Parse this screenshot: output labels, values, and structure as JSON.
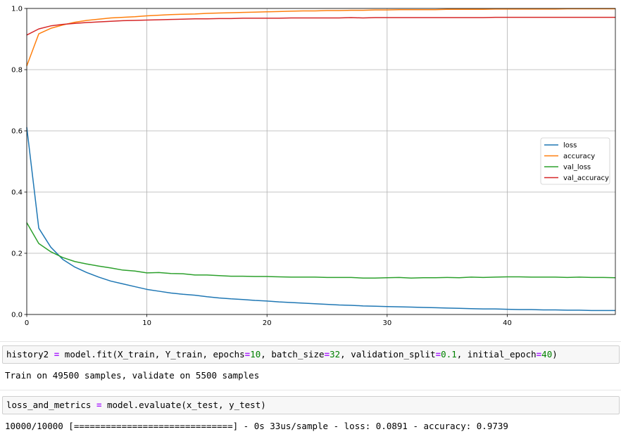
{
  "chart_data": {
    "type": "line",
    "xticks": [
      "0",
      "10",
      "20",
      "30",
      "40"
    ],
    "yticks": [
      "0.0",
      "0.2",
      "0.4",
      "0.6",
      "0.8",
      "1.0"
    ],
    "xlim": [
      0,
      49
    ],
    "ylim": [
      0,
      1
    ],
    "grid": true,
    "legend_position": "center-right",
    "series": [
      {
        "name": "loss",
        "color": "#1f77b4",
        "values": [
          0.612,
          0.282,
          0.22,
          0.18,
          0.155,
          0.137,
          0.122,
          0.109,
          0.1,
          0.091,
          0.082,
          0.076,
          0.07,
          0.066,
          0.063,
          0.058,
          0.054,
          0.051,
          0.049,
          0.046,
          0.044,
          0.041,
          0.039,
          0.037,
          0.035,
          0.033,
          0.031,
          0.03,
          0.028,
          0.027,
          0.026,
          0.025,
          0.024,
          0.023,
          0.022,
          0.021,
          0.02,
          0.019,
          0.018,
          0.018,
          0.017,
          0.016,
          0.016,
          0.015,
          0.015,
          0.014,
          0.014,
          0.013,
          0.013,
          0.013
        ]
      },
      {
        "name": "accuracy",
        "color": "#ff7f0e",
        "values": [
          0.812,
          0.917,
          0.935,
          0.946,
          0.955,
          0.961,
          0.965,
          0.969,
          0.971,
          0.973,
          0.976,
          0.978,
          0.98,
          0.981,
          0.982,
          0.984,
          0.985,
          0.986,
          0.987,
          0.988,
          0.989,
          0.99,
          0.991,
          0.992,
          0.992,
          0.993,
          0.993,
          0.994,
          0.994,
          0.995,
          0.995,
          0.996,
          0.996,
          0.996,
          0.996,
          0.997,
          0.997,
          0.997,
          0.997,
          0.998,
          0.998,
          0.998,
          0.998,
          0.998,
          0.998,
          0.999,
          0.999,
          0.999,
          0.999,
          0.999
        ]
      },
      {
        "name": "val_loss",
        "color": "#2ca02c",
        "values": [
          0.3,
          0.232,
          0.205,
          0.186,
          0.173,
          0.165,
          0.158,
          0.152,
          0.145,
          0.142,
          0.136,
          0.137,
          0.134,
          0.133,
          0.129,
          0.129,
          0.127,
          0.125,
          0.125,
          0.124,
          0.124,
          0.123,
          0.122,
          0.122,
          0.122,
          0.121,
          0.121,
          0.121,
          0.119,
          0.119,
          0.12,
          0.121,
          0.119,
          0.12,
          0.12,
          0.121,
          0.12,
          0.122,
          0.121,
          0.122,
          0.123,
          0.123,
          0.122,
          0.122,
          0.122,
          0.121,
          0.122,
          0.121,
          0.121,
          0.12
        ]
      },
      {
        "name": "val_accuracy",
        "color": "#d62728",
        "values": [
          0.913,
          0.933,
          0.943,
          0.948,
          0.951,
          0.954,
          0.956,
          0.958,
          0.96,
          0.961,
          0.962,
          0.963,
          0.964,
          0.965,
          0.966,
          0.966,
          0.967,
          0.967,
          0.968,
          0.968,
          0.968,
          0.968,
          0.969,
          0.969,
          0.969,
          0.969,
          0.969,
          0.97,
          0.969,
          0.97,
          0.97,
          0.97,
          0.97,
          0.97,
          0.97,
          0.97,
          0.97,
          0.97,
          0.97,
          0.971,
          0.971,
          0.971,
          0.971,
          0.971,
          0.971,
          0.971,
          0.971,
          0.971,
          0.971,
          0.971
        ]
      }
    ]
  },
  "cells": {
    "fit_input": {
      "p1": "history2 ",
      "eq1": "=",
      "p2": " model.fit(X_train, Y_train, epochs",
      "eq2": "=",
      "n1": "10",
      "p3": ", batch_size",
      "eq3": "=",
      "n2": "32",
      "p4": ", validation_split",
      "eq4": "=",
      "n3": "0.1",
      "p5": ", initial_epoch",
      "eq5": "=",
      "n4": "40",
      "p6": ")"
    },
    "fit_output": "Train on 49500 samples, validate on 5500 samples",
    "eval_input": {
      "p1": "loss_and_metrics ",
      "eq1": "=",
      "p2": " model.evaluate(x_test, y_test)"
    },
    "eval_output": "10000/10000 [==============================] - 0s 33us/sample - loss: 0.0891 - accuracy: 0.9739"
  }
}
